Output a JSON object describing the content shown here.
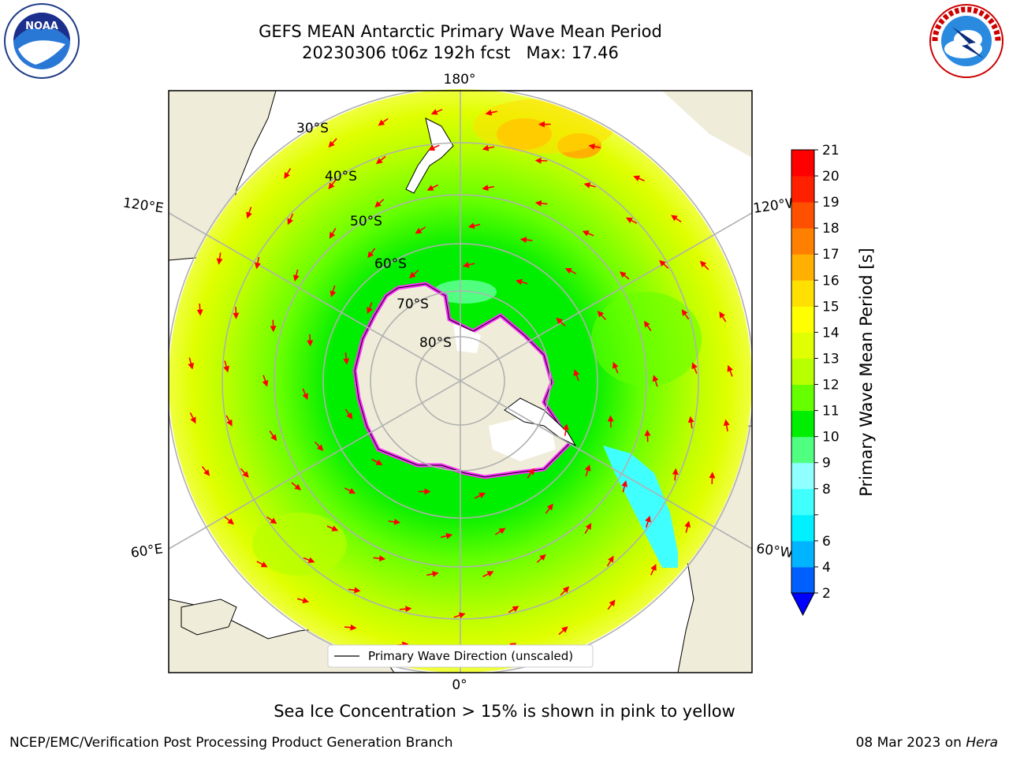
{
  "title": {
    "line1": "GEFS MEAN Antarctic Primary Wave Mean Period",
    "line2_run": "20230306 t06z 192h fcst",
    "line2_max": "Max: 17.46"
  },
  "map": {
    "projection": "south polar stereographic",
    "lon_labels": {
      "top": "180°",
      "bottom": "0°",
      "upper_left": "120°E",
      "upper_right": "120°W",
      "lower_left": "60°E",
      "lower_right": "60°W"
    },
    "lat_labels": [
      "30°S",
      "40°S",
      "50°S",
      "60°S",
      "70°S",
      "80°S"
    ],
    "legend_label": "Primary Wave Direction (unscaled)",
    "arrow_color": "#ff0000",
    "land_color": "#efedd9",
    "ice_edge_color": "#ff30ff"
  },
  "colorbar": {
    "label": "Primary Wave Mean Period [s]",
    "ticks": [
      "2",
      "4",
      "6",
      "7",
      "8",
      "9",
      "10",
      "11",
      "12",
      "13",
      "14",
      "15",
      "16",
      "17",
      "18",
      "19",
      "20",
      "21"
    ],
    "tick_labels_shown": [
      "2",
      "4",
      "6",
      "8",
      "9",
      "10",
      "11",
      "12",
      "13",
      "14",
      "15",
      "16",
      "17",
      "18",
      "19",
      "20",
      "21"
    ],
    "colors": [
      "#0060ff",
      "#00b4ff",
      "#00f0ff",
      "#40ffff",
      "#90ffff",
      "#50ff80",
      "#00ee00",
      "#66ff00",
      "#b8ff00",
      "#e0ff00",
      "#ffff00",
      "#ffe000",
      "#ffb000",
      "#ff8000",
      "#ff5000",
      "#ff2000",
      "#ff0000"
    ],
    "under_color": "#0000ff",
    "extend": "min"
  },
  "caption": "Sea Ice Concentration > 15% is shown in pink to yellow",
  "footer": {
    "left": "NCEP/EMC/Verification Post Processing Product Generation Branch",
    "right_date": "08 Mar 2023 on",
    "right_machine": "Hera"
  },
  "logos": {
    "left": "noaa-logo",
    "right": "nws-logo"
  }
}
